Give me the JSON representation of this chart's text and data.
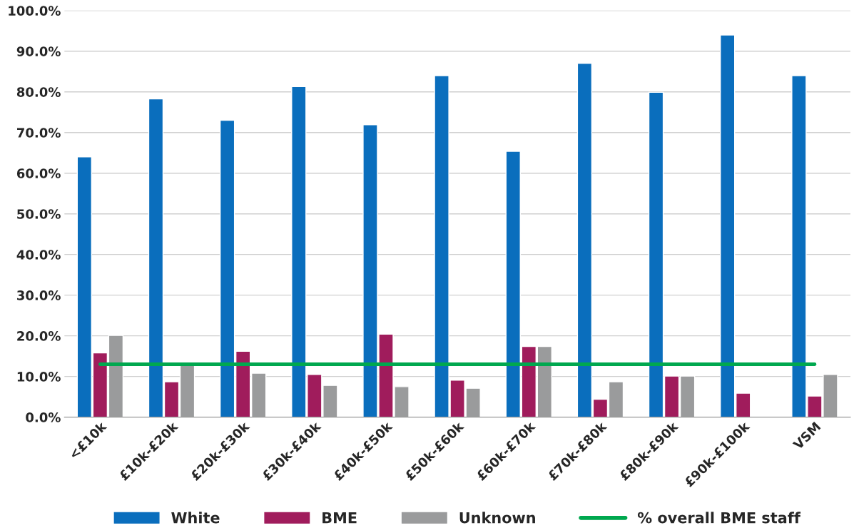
{
  "chart_data": {
    "type": "bar",
    "categories": [
      "<£10k",
      "£10k-£20k",
      "£20k-£30k",
      "£30k-£40k",
      "£40k-£50k",
      "£50k-£60k",
      "£60k-£70k",
      "£70k-£80k",
      "£80k-£90k",
      "£90k-£100k",
      "VSM"
    ],
    "series": [
      {
        "name": "White",
        "color": "#0a6ebd",
        "values": [
          64.0,
          78.3,
          73.0,
          81.3,
          71.9,
          84.0,
          65.4,
          87.0,
          79.9,
          94.0,
          84.0
        ]
      },
      {
        "name": "BME",
        "color": "#a01c5c",
        "values": [
          15.8,
          8.7,
          16.2,
          10.5,
          20.4,
          9.1,
          17.4,
          4.4,
          10.1,
          5.9,
          5.2
        ]
      },
      {
        "name": "Unknown",
        "color": "#9a9b9c",
        "values": [
          20.1,
          13.0,
          10.8,
          7.8,
          7.5,
          7.1,
          17.4,
          8.7,
          10.1,
          null,
          10.5
        ]
      },
      {
        "name": "% overall BME staff",
        "color": "#00a84f",
        "type": "line",
        "values": [
          13.0,
          13.0,
          13.0,
          13.0,
          13.0,
          13.0,
          13.0,
          13.0,
          13.0,
          13.0,
          13.0
        ]
      }
    ],
    "ylim": [
      0,
      100
    ],
    "yticks": [
      {
        "value": 0,
        "label": "0.0%"
      },
      {
        "value": 10,
        "label": "10.0%"
      },
      {
        "value": 20,
        "label": "20.0%"
      },
      {
        "value": 30,
        "label": "30.0%"
      },
      {
        "value": 40,
        "label": "40.0%"
      },
      {
        "value": 50,
        "label": "50.0%"
      },
      {
        "value": 60,
        "label": "60.0%"
      },
      {
        "value": 70,
        "label": "70.0%"
      },
      {
        "value": 80,
        "label": "80.0%"
      },
      {
        "value": 90,
        "label": "90.0%"
      },
      {
        "value": 100,
        "label": "100.0%"
      }
    ],
    "grid": "y",
    "legend": "bottom",
    "marker": "none",
    "line_style": "solid"
  }
}
